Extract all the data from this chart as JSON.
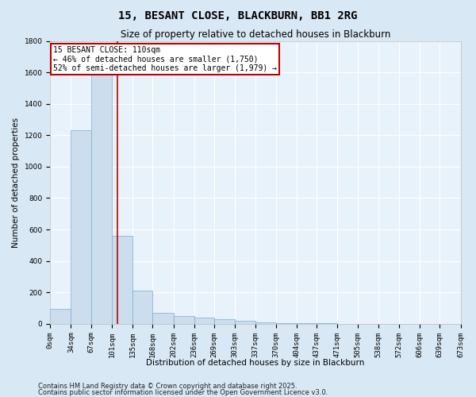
{
  "title": "15, BESANT CLOSE, BLACKBURN, BB1 2RG",
  "subtitle": "Size of property relative to detached houses in Blackburn",
  "xlabel": "Distribution of detached houses by size in Blackburn",
  "ylabel": "Number of detached properties",
  "bin_edges": [
    0,
    34,
    67,
    101,
    135,
    168,
    202,
    236,
    269,
    303,
    337,
    370,
    404,
    437,
    471,
    505,
    538,
    572,
    606,
    639,
    673
  ],
  "bin_labels": [
    "0sqm",
    "34sqm",
    "67sqm",
    "101sqm",
    "135sqm",
    "168sqm",
    "202sqm",
    "236sqm",
    "269sqm",
    "303sqm",
    "337sqm",
    "370sqm",
    "404sqm",
    "437sqm",
    "471sqm",
    "505sqm",
    "538sqm",
    "572sqm",
    "606sqm",
    "639sqm",
    "673sqm"
  ],
  "bar_heights": [
    95,
    1230,
    1620,
    560,
    210,
    70,
    50,
    40,
    30,
    20,
    10,
    5,
    3,
    2,
    1,
    1,
    0,
    0,
    0,
    0
  ],
  "bar_color": "#ccdded",
  "bar_edge_color": "#7aaed0",
  "vline_x": 110,
  "vline_color": "#bb0000",
  "ylim": [
    0,
    1800
  ],
  "annotation_text": "15 BESANT CLOSE: 110sqm\n← 46% of detached houses are smaller (1,750)\n52% of semi-detached houses are larger (1,979) →",
  "annotation_box_color": "#ffffff",
  "annotation_box_edge": "#bb0000",
  "footnote1": "Contains HM Land Registry data © Crown copyright and database right 2025.",
  "footnote2": "Contains public sector information licensed under the Open Government Licence v3.0.",
  "bg_color": "#d8e8f4",
  "plot_bg_color": "#e8f2fb",
  "grid_color": "#ffffff",
  "title_fontsize": 10,
  "subtitle_fontsize": 8.5,
  "label_fontsize": 7.5,
  "tick_fontsize": 6.5,
  "footnote_fontsize": 6,
  "annotation_fontsize": 7
}
